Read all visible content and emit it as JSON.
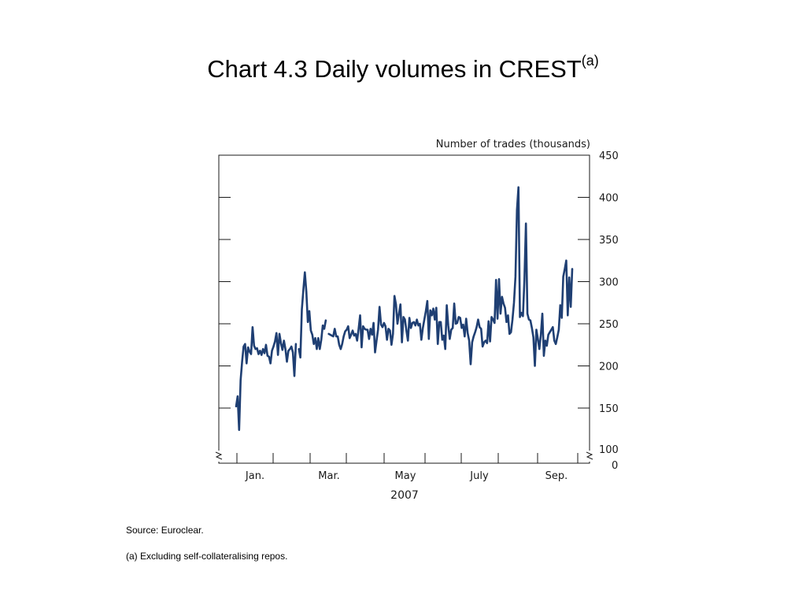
{
  "title": {
    "main": "Chart 4.3  Daily volumes in CREST",
    "superscript": "(a)"
  },
  "footnotes": {
    "source": "Source:  Euroclear.",
    "note": "(a)  Excluding self-collateralising repos."
  },
  "colors": {
    "line": "#1f3f73",
    "axis": "#1a1a1a"
  },
  "chart_data": {
    "type": "line",
    "title": "",
    "ylabel": "Number of trades (thousands)",
    "xlabel": "2007",
    "ylim": [
      100,
      450
    ],
    "y_axis_break": true,
    "y_axis_side": "right",
    "y_ticks": [
      150,
      200,
      250,
      300,
      350,
      400,
      450
    ],
    "y_tick_labels": [
      "150",
      "200",
      "250",
      "300",
      "350",
      "400",
      "450"
    ],
    "y_bottom_labels": [
      "100",
      "0"
    ],
    "x_month_labels": [
      "Jan.",
      "Mar.",
      "May",
      "July",
      "Sep."
    ],
    "series": [
      {
        "values": [
          152,
          164,
          124,
          183,
          205,
          223,
          226,
          203,
          222,
          217,
          214,
          246,
          224,
          220,
          221,
          214,
          218,
          213,
          220,
          215,
          225,
          212,
          211,
          203,
          218,
          223,
          229,
          239,
          213,
          238,
          227,
          219,
          230,
          220,
          205,
          218,
          220,
          223,
          216,
          188,
          226,
          null,
          220,
          210,
          267,
          290,
          311,
          288,
          252,
          265,
          242,
          237,
          226,
          233,
          220,
          233,
          220,
          231,
          248,
          244,
          254,
          null,
          238,
          237,
          236,
          235,
          244,
          235,
          235,
          225,
          220,
          226,
          235,
          241,
          243,
          247,
          233,
          237,
          242,
          236,
          238,
          230,
          244,
          260,
          222,
          247,
          244,
          243,
          243,
          232,
          244,
          237,
          251,
          216,
          230,
          243,
          270,
          249,
          246,
          251,
          247,
          231,
          244,
          242,
          225,
          238,
          283,
          273,
          250,
          262,
          273,
          228,
          258,
          255,
          242,
          230,
          257,
          245,
          251,
          252,
          248,
          255,
          248,
          250,
          231,
          245,
          255,
          265,
          277,
          232,
          266,
          260,
          268,
          255,
          269,
          226,
          252,
          252,
          231,
          236,
          220,
          272,
          248,
          232,
          243,
          245,
          274,
          250,
          251,
          258,
          257,
          245,
          249,
          235,
          256,
          239,
          230,
          202,
          228,
          235,
          240,
          246,
          255,
          246,
          244,
          223,
          228,
          230,
          227,
          253,
          229,
          258,
          255,
          251,
          302,
          256,
          303,
          262,
          282,
          274,
          269,
          252,
          260,
          238,
          240,
          255,
          275,
          306,
          385,
          412,
          258,
          263,
          259,
          302,
          369,
          262,
          255,
          254,
          245,
          234,
          200,
          243,
          232,
          220,
          237,
          262,
          212,
          230,
          224,
          237,
          240,
          243,
          246,
          230,
          226,
          234,
          243,
          272,
          257,
          306,
          315,
          325,
          260,
          305,
          270,
          315
        ]
      }
    ]
  }
}
